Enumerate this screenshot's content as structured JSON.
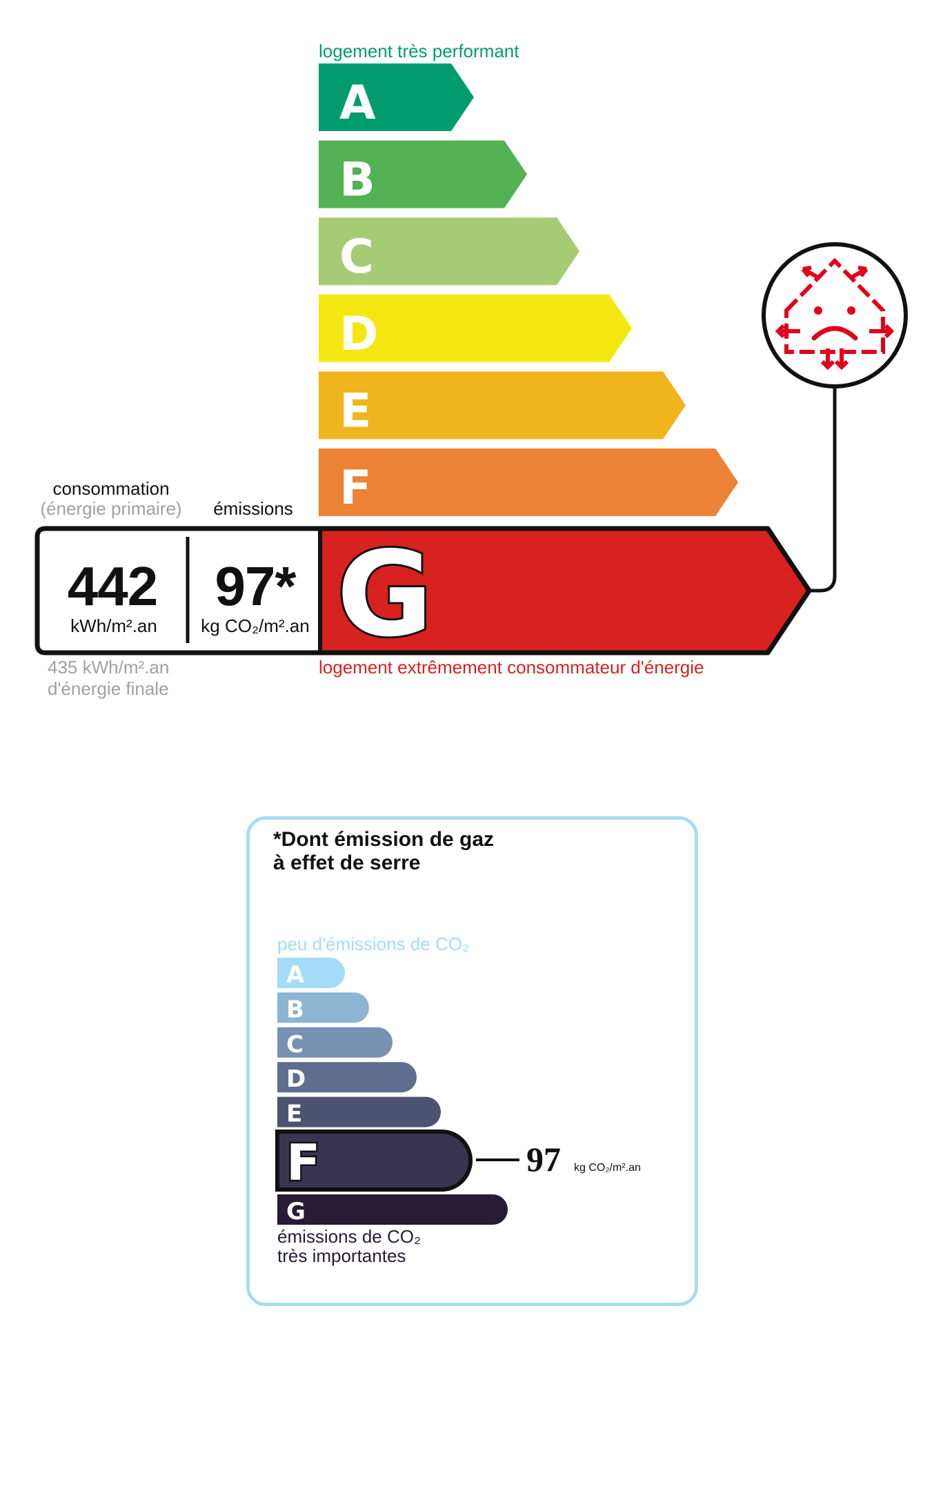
{
  "energy": {
    "top_label": "logement très performant",
    "bottom_label": "logement extrêmement consommateur d'énergie",
    "classes": [
      {
        "letter": "A",
        "color": "#009c6d"
      },
      {
        "letter": "B",
        "color": "#52b153"
      },
      {
        "letter": "C",
        "color": "#a5cc74"
      },
      {
        "letter": "D",
        "color": "#f4e70f"
      },
      {
        "letter": "E",
        "color": "#f0b41c"
      },
      {
        "letter": "F",
        "color": "#eb8235"
      },
      {
        "letter": "G",
        "color": "#d7221f"
      }
    ],
    "current_class": "G",
    "consumption_label": "consommation",
    "consumption_sublabel": "(énergie primaire)",
    "emissions_label": "émissions",
    "consumption_value": "442",
    "consumption_unit": "kWh/m².an",
    "emissions_value": "97*",
    "emissions_unit": "kg CO₂/m².an",
    "final_energy_value": "435 kWh/m².an",
    "final_energy_label": "d'énergie finale",
    "icon": "sad-house-thermal-loss-icon"
  },
  "ges": {
    "title_line1": "*Dont émission de gaz",
    "title_line2": "à effet de serre",
    "top_label": "peu d'émissions de CO₂",
    "bottom_label_line1": "émissions de CO₂",
    "bottom_label_line2": "très importantes",
    "classes": [
      {
        "letter": "A",
        "color": "#a4dbf8"
      },
      {
        "letter": "B",
        "color": "#8cb4d3"
      },
      {
        "letter": "C",
        "color": "#7792b1"
      },
      {
        "letter": "D",
        "color": "#5f6e8f"
      },
      {
        "letter": "E",
        "color": "#4d5271"
      },
      {
        "letter": "F",
        "color": "#393551"
      },
      {
        "letter": "G",
        "color": "#281b35"
      }
    ],
    "current_class": "F",
    "value": "97",
    "unit": "kg CO₂/m².an",
    "border_color": "#a6dcf5",
    "top_label_color": "#a4dbf8"
  }
}
